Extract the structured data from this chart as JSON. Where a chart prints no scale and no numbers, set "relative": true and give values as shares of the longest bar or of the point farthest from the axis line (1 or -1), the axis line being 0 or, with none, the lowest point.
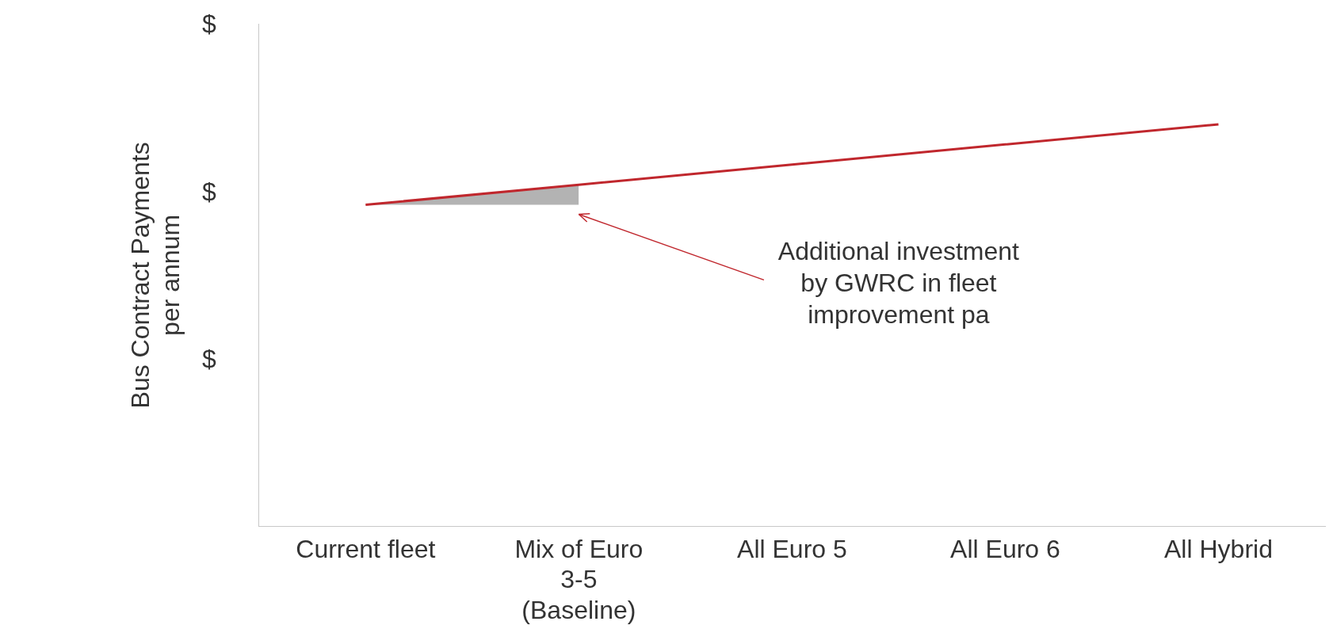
{
  "chart_data": {
    "type": "line",
    "relative": true,
    "ylabel": "Bus Contract Payments per annum",
    "categories": [
      "Current fleet",
      "Mix of Euro 3-5 (Baseline)",
      "All Euro 5",
      "All Euro 6",
      "All Hybrid"
    ],
    "series": [
      {
        "color": "#c0272d",
        "values": [
          0.8,
          0.85,
          0.9,
          0.95,
          1
        ]
      },
      {
        "type": "area",
        "color": "#b3b3b3",
        "values": [
          0.8,
          0.85,
          null,
          null,
          null
        ]
      }
    ],
    "annotations": [
      "$",
      "$",
      "$",
      "Additional investment by GWRC in fleet improvement pa"
    ],
    "marker": "none",
    "legend": false
  }
}
